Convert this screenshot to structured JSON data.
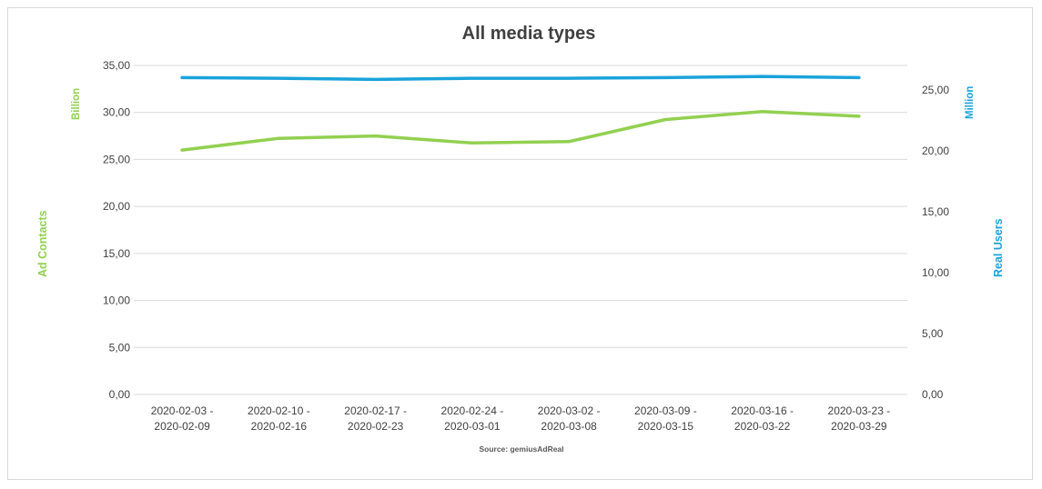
{
  "chart_data": {
    "type": "line",
    "title": "All media types",
    "source": "Source: gemiusAdReal",
    "categories": [
      [
        "2020-02-03 -",
        "2020-02-09"
      ],
      [
        "2020-02-10 -",
        "2020-02-16"
      ],
      [
        "2020-02-17 -",
        "2020-02-23"
      ],
      [
        "2020-02-24 -",
        "2020-03-01"
      ],
      [
        "2020-03-02 -",
        "2020-03-08"
      ],
      [
        "2020-03-09 -",
        "2020-03-15"
      ],
      [
        "2020-03-16 -",
        "2020-03-22"
      ],
      [
        "2020-03-23 -",
        "2020-03-29"
      ]
    ],
    "y_left": {
      "label": "Ad Contacts",
      "unit": "Billion",
      "ylim": [
        0,
        35
      ],
      "ticks": [
        "0,00",
        "5,00",
        "10,00",
        "15,00",
        "20,00",
        "25,00",
        "30,00",
        "35,00"
      ],
      "tick_values": [
        0,
        5,
        10,
        15,
        20,
        25,
        30,
        35
      ],
      "color": "#92d050"
    },
    "y_right": {
      "label": "Real Users",
      "unit": "Million",
      "ylim": [
        0,
        27
      ],
      "ticks": [
        "0,00",
        "5,00",
        "10,00",
        "15,00",
        "20,00",
        "25,00"
      ],
      "tick_values": [
        0,
        5,
        10,
        15,
        20,
        25
      ],
      "color": "#1aa3db"
    },
    "series": [
      {
        "axis": "left",
        "color": "#92d050",
        "values": [
          26.0,
          27.25,
          27.5,
          26.75,
          26.9,
          29.25,
          30.1,
          29.6
        ]
      },
      {
        "axis": "right",
        "color": "#1aa3db",
        "values": [
          26.0,
          25.95,
          25.85,
          25.95,
          25.95,
          26.0,
          26.1,
          26.0
        ]
      }
    ],
    "grid": true,
    "legend": "none"
  }
}
